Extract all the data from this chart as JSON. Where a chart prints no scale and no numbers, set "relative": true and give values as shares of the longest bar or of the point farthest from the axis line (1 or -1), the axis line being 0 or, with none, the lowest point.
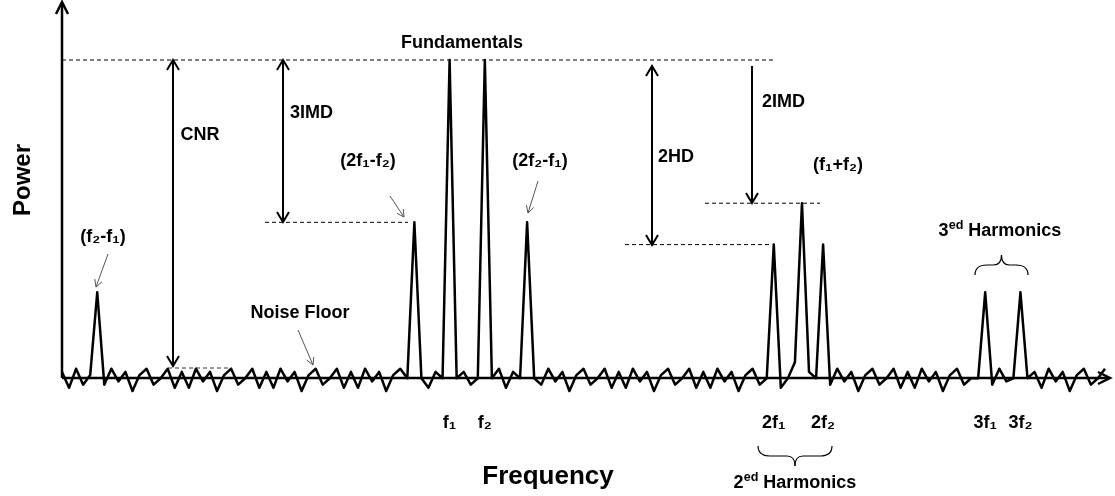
{
  "chart_data": {
    "type": "line",
    "relative": true,
    "xlabel": "Frequency",
    "ylabel": "Power",
    "categories": [
      null,
      null,
      null,
      null,
      null,
      null,
      null,
      null,
      null,
      null,
      null,
      null,
      null,
      null,
      null,
      null,
      null,
      null,
      null,
      null,
      null,
      null,
      null,
      null,
      null,
      null,
      null,
      null,
      null,
      null,
      null,
      null,
      null,
      null,
      null,
      null,
      null,
      null,
      null,
      null,
      null,
      null,
      null,
      null,
      null,
      null,
      null,
      null,
      null,
      null,
      null,
      null,
      null,
      null,
      null,
      "f₁",
      null,
      null,
      null,
      null,
      "f₂",
      null,
      null,
      null,
      null,
      null,
      null,
      null,
      null,
      null,
      null,
      null,
      null,
      null,
      null,
      null,
      null,
      null,
      null,
      null,
      null,
      null,
      null,
      null,
      null,
      null,
      null,
      null,
      null,
      null,
      null,
      null,
      null,
      null,
      null,
      null,
      null,
      null,
      null,
      null,
      null,
      "2f₁",
      null,
      null,
      null,
      null,
      null,
      null,
      "2f₂",
      null,
      null,
      null,
      null,
      null,
      null,
      null,
      null,
      null,
      null,
      null,
      null,
      null,
      null,
      null,
      null,
      null,
      null,
      null,
      null,
      null,
      null,
      "3f₁",
      null,
      null,
      null,
      null,
      "3f₂",
      null,
      null,
      null,
      null,
      null,
      null,
      null,
      null,
      null,
      null,
      null,
      null
    ],
    "series": [
      {
        "color": "#000000",
        "values": [
          0.02,
          -0.03,
          0.03,
          -0.02,
          0.01,
          0.27,
          -0.02,
          0.03,
          -0.01,
          0.02,
          -0.04,
          0.01,
          0.03,
          -0.02,
          0.0,
          0.03,
          -0.03,
          0.02,
          -0.03,
          0.03,
          -0.01,
          0.02,
          -0.04,
          0.01,
          0.03,
          -0.02,
          0.0,
          0.03,
          -0.03,
          0.02,
          -0.03,
          0.03,
          -0.01,
          0.02,
          -0.04,
          0.01,
          0.03,
          -0.02,
          0.0,
          0.03,
          -0.03,
          0.02,
          -0.03,
          0.03,
          -0.01,
          0.02,
          -0.04,
          0.01,
          0.03,
          0.0,
          0.49,
          0.0,
          -0.03,
          0.02,
          0.0,
          1,
          0.0,
          0.02,
          -0.02,
          0.0,
          1,
          0.0,
          0.03,
          -0.03,
          0.02,
          0.0,
          0.49,
          0.0,
          -0.02,
          0.03,
          -0.01,
          0.02,
          -0.04,
          0.01,
          0.03,
          -0.02,
          0.0,
          0.03,
          -0.03,
          0.02,
          -0.03,
          0.03,
          -0.01,
          0.02,
          -0.04,
          0.01,
          0.03,
          -0.02,
          0.0,
          0.03,
          -0.03,
          0.02,
          -0.03,
          0.03,
          -0.01,
          0.02,
          -0.04,
          0.01,
          0.03,
          -0.02,
          0.0,
          0.42,
          -0.03,
          0.0,
          0.05,
          0.55,
          0.02,
          0.0,
          0.42,
          -0.02,
          0.03,
          -0.01,
          0.02,
          -0.04,
          0.01,
          0.03,
          -0.02,
          0.0,
          0.03,
          -0.03,
          0.02,
          -0.03,
          0.03,
          -0.01,
          0.02,
          -0.04,
          0.01,
          0.03,
          -0.02,
          0.0,
          0.0,
          0.27,
          -0.02,
          0.03,
          -0.01,
          0.0,
          0.27,
          0.0,
          0.02,
          -0.03,
          0.03,
          -0.01,
          0.02,
          -0.04,
          0.01,
          0.03,
          -0.02,
          0.0,
          0.03
        ]
      }
    ],
    "annotations": [
      "Fundamentals",
      "CNR",
      "3IMD",
      "2HD",
      "2IMD",
      "(f₂-f₁)",
      "(2f₁-f₂)",
      "(2f₂-f₁)",
      "(f₁+f₂)",
      "Noise Floor",
      "3$^{ed}$ Harmonics",
      "2$^{ed}$ Harmonics"
    ],
    "ref_lines": [
      {
        "axis": "y",
        "value": 1,
        "color": "#000000",
        "line_style": "dashed"
      },
      {
        "axis": "y",
        "value": 0.49,
        "color": "#000000",
        "line_style": "dashed"
      },
      {
        "axis": "y",
        "value": 0.42,
        "color": "#000000",
        "line_style": "dashed"
      },
      {
        "axis": "y",
        "value": 0.55,
        "color": "#000000",
        "line_style": "dashed"
      }
    ],
    "marker": "none",
    "line_style": "solid",
    "grid": false,
    "legend": false
  }
}
